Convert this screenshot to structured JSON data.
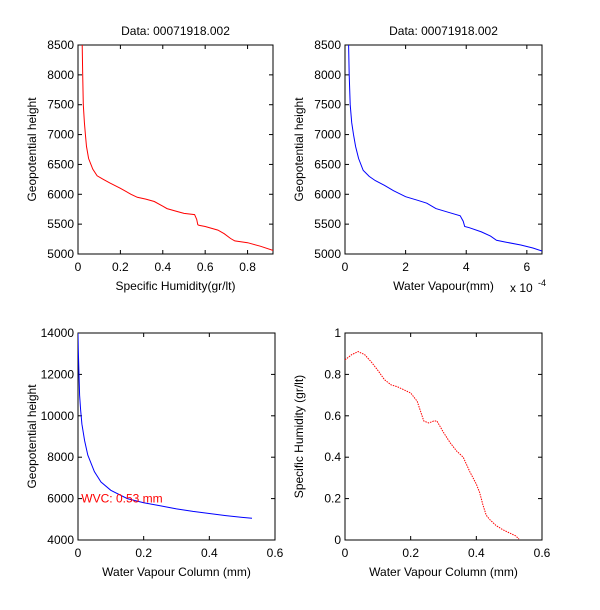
{
  "figure": {
    "chart_data": [
      {
        "type": "line",
        "title": "Data: 00071918.002",
        "xlabel": "Specific Humidity(gr/lt)",
        "ylabel": "Geopotential height",
        "xlim": [
          0,
          0.92
        ],
        "ylim": [
          5000,
          8500
        ],
        "xticks": [
          0,
          0.2,
          0.4,
          0.6,
          0.8
        ],
        "xtick_labels": [
          "0",
          "0.2",
          "0.4",
          "0.6",
          "0.8"
        ],
        "yticks": [
          5000,
          5500,
          6000,
          6500,
          7000,
          7500,
          8000,
          8500
        ],
        "ytick_labels": [
          "5000",
          "5500",
          "6000",
          "6500",
          "7000",
          "7500",
          "8000",
          "8500"
        ],
        "grid": false,
        "series": [
          {
            "color": "#ff0000",
            "style": "solid",
            "x": [
              0.02,
              0.022,
              0.025,
              0.03,
              0.035,
              0.04,
              0.05,
              0.07,
              0.09,
              0.12,
              0.15,
              0.2,
              0.25,
              0.28,
              0.32,
              0.36,
              0.4,
              0.42,
              0.47,
              0.5,
              0.55,
              0.56,
              0.565,
              0.57,
              0.6,
              0.66,
              0.69,
              0.72,
              0.74,
              0.8,
              0.86,
              0.92
            ],
            "y": [
              8500,
              8000,
              7500,
              7200,
              7000,
              6800,
              6600,
              6420,
              6310,
              6250,
              6190,
              6100,
              6000,
              5950,
              5920,
              5880,
              5800,
              5760,
              5710,
              5680,
              5660,
              5580,
              5490,
              5480,
              5460,
              5400,
              5340,
              5260,
              5220,
              5190,
              5130,
              5060
            ]
          }
        ]
      },
      {
        "type": "line",
        "title": "Data: 00071918.002",
        "xlabel": "Water Vapour(mm)",
        "ylabel": "Geopotential height",
        "x_multiplier_label": "x 10",
        "x_multiplier_exponent": "-4",
        "xlim": [
          0,
          6.5
        ],
        "ylim": [
          5000,
          8500
        ],
        "xticks": [
          0,
          2,
          4,
          6
        ],
        "xtick_labels": [
          "0",
          "2",
          "4",
          "6"
        ],
        "yticks": [
          5000,
          5500,
          6000,
          6500,
          7000,
          7500,
          8000,
          8500
        ],
        "ytick_labels": [
          "5000",
          "5500",
          "6000",
          "6500",
          "7000",
          "7500",
          "8000",
          "8500"
        ],
        "grid": false,
        "series": [
          {
            "color": "#0000ff",
            "style": "solid",
            "x": [
              0.12,
              0.14,
              0.17,
              0.22,
              0.28,
              0.35,
              0.45,
              0.6,
              0.8,
              1.0,
              1.3,
              1.6,
              2.0,
              2.4,
              2.7,
              3.0,
              3.4,
              3.8,
              3.9,
              3.95,
              4.1,
              4.5,
              4.8,
              5.0,
              5.3,
              5.8,
              6.2,
              6.5
            ],
            "y": [
              8500,
              8000,
              7500,
              7200,
              7000,
              6800,
              6600,
              6400,
              6300,
              6230,
              6150,
              6060,
              5960,
              5900,
              5850,
              5760,
              5700,
              5640,
              5550,
              5460,
              5440,
              5370,
              5300,
              5230,
              5200,
              5150,
              5100,
              5050
            ]
          }
        ]
      },
      {
        "type": "line",
        "title": "",
        "xlabel": "Water Vapour Column (mm)",
        "ylabel": "Geopotential height",
        "xlim": [
          0,
          0.6
        ],
        "ylim": [
          4000,
          14000
        ],
        "xticks": [
          0,
          0.2,
          0.4,
          0.6
        ],
        "xtick_labels": [
          "0",
          "0.2",
          "0.4",
          "0.6"
        ],
        "yticks": [
          4000,
          6000,
          8000,
          10000,
          12000,
          14000
        ],
        "ytick_labels": [
          "4000",
          "6000",
          "8000",
          "10000",
          "12000",
          "14000"
        ],
        "grid": false,
        "annotation": {
          "text": "WVC: 0.53 mm",
          "color": "#ff0000",
          "x": 0.01,
          "y": 6000
        },
        "series": [
          {
            "color": "#0000ff",
            "style": "solid",
            "x": [
              0,
              0.001,
              0.002,
              0.003,
              0.005,
              0.008,
              0.012,
              0.02,
              0.03,
              0.05,
              0.07,
              0.1,
              0.15,
              0.2,
              0.25,
              0.3,
              0.35,
              0.4,
              0.45,
              0.5,
              0.53
            ],
            "y": [
              14000,
              13200,
              12500,
              12000,
              11000,
              10300,
              9600,
              8800,
              8100,
              7300,
              6800,
              6400,
              6000,
              5800,
              5650,
              5500,
              5380,
              5280,
              5180,
              5090,
              5050
            ]
          }
        ]
      },
      {
        "type": "line",
        "title": "",
        "xlabel": "Water Vapour Column (mm)",
        "ylabel": "Specific Humidity (gr/lt)",
        "xlim": [
          0,
          0.6
        ],
        "ylim": [
          0,
          1
        ],
        "xticks": [
          0,
          0.2,
          0.4,
          0.6
        ],
        "xtick_labels": [
          "0",
          "0.2",
          "0.4",
          "0.6"
        ],
        "yticks": [
          0,
          0.2,
          0.4,
          0.6,
          0.8,
          1
        ],
        "ytick_labels": [
          "0",
          "0.2",
          "0.4",
          "0.6",
          "0.8",
          "1"
        ],
        "grid": false,
        "series": [
          {
            "color": "#ff0000",
            "style": "dotted",
            "x": [
              0,
              0.02,
              0.04,
              0.06,
              0.08,
              0.1,
              0.12,
              0.14,
              0.16,
              0.18,
              0.2,
              0.22,
              0.24,
              0.255,
              0.27,
              0.28,
              0.3,
              0.32,
              0.34,
              0.36,
              0.38,
              0.4,
              0.41,
              0.42,
              0.43,
              0.44,
              0.46,
              0.48,
              0.5,
              0.52,
              0.53
            ],
            "y": [
              0.87,
              0.895,
              0.91,
              0.895,
              0.86,
              0.82,
              0.775,
              0.75,
              0.74,
              0.725,
              0.71,
              0.67,
              0.575,
              0.565,
              0.575,
              0.575,
              0.52,
              0.47,
              0.43,
              0.4,
              0.33,
              0.27,
              0.23,
              0.17,
              0.12,
              0.1,
              0.07,
              0.05,
              0.035,
              0.02,
              0.005
            ]
          }
        ]
      }
    ]
  }
}
